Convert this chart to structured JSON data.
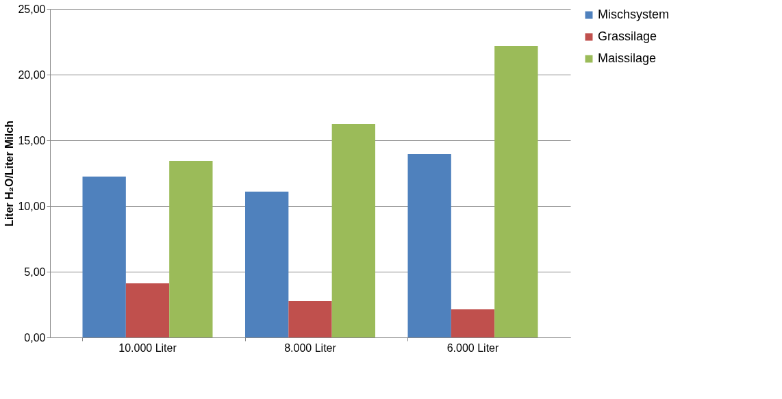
{
  "chart_data": {
    "type": "bar",
    "ylabel": "Liter H₂O/Liter Milch",
    "categories": [
      "10.000 Liter",
      "8.000 Liter",
      "6.000 Liter"
    ],
    "series": [
      {
        "name": "Mischsystem",
        "color": "#4f81bd",
        "values": [
          12.24,
          11.09,
          13.96
        ]
      },
      {
        "name": "Grassilage",
        "color": "#c0504d",
        "values": [
          4.11,
          2.76,
          2.14
        ]
      },
      {
        "name": "Maissilage",
        "color": "#9bbb59",
        "values": [
          13.44,
          16.25,
          22.19
        ]
      }
    ],
    "ylim": [
      0,
      25
    ],
    "yticks": [
      {
        "value": 0,
        "label": "0,00"
      },
      {
        "value": 5,
        "label": "5,00"
      },
      {
        "value": 10,
        "label": "10,00"
      },
      {
        "value": 15,
        "label": "15,00"
      },
      {
        "value": 20,
        "label": "20,00"
      },
      {
        "value": 25,
        "label": "25,00"
      }
    ],
    "grid": "y",
    "legend": "right"
  }
}
